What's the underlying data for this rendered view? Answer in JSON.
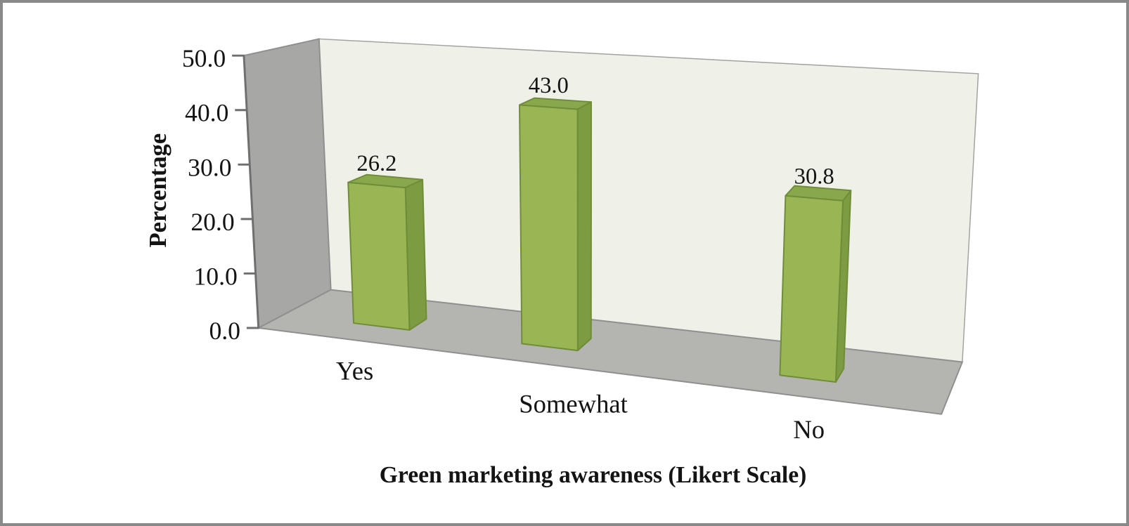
{
  "page": {
    "background": "#ffffff",
    "frame_color": "#898989"
  },
  "chart_data": {
    "type": "bar",
    "style": "3d-column",
    "title": "",
    "categories": [
      "Yes",
      "Somewhat",
      "No"
    ],
    "values": [
      26.2,
      43.0,
      30.8
    ],
    "data_labels": [
      "26.2",
      "43.0",
      "30.8"
    ],
    "xlabel": "Green marketing awareness (Likert Scale)",
    "ylabel": "Percentage",
    "ylim": [
      0,
      50
    ],
    "ytick_step": 10,
    "ytick_labels": [
      "0.0",
      "10.0",
      "20.0",
      "30.0",
      "40.0",
      "50.0"
    ],
    "grid": false,
    "legend": false,
    "colors": {
      "bar_front": "#9ab654",
      "bar_side": "#7d9b41",
      "bar_top": "#89a74b",
      "bar_edge": "#6f8c38",
      "back_wall": "#eff1e8",
      "side_wall": "#a7a7a5",
      "floor": "#b4b4b1",
      "outline": "#8f8f8f",
      "axis": "#6f6f6f",
      "text": "#141414"
    }
  }
}
